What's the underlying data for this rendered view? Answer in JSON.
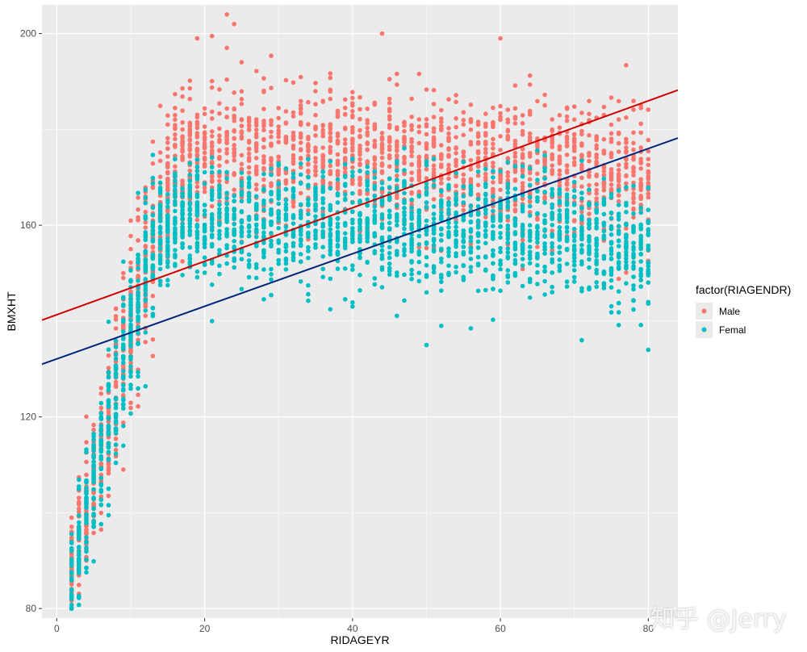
{
  "chart_data": {
    "type": "scatter",
    "title": "",
    "xlabel": "RIDAGEYR",
    "ylabel": "BMXHT",
    "xlim": [
      -2,
      84
    ],
    "ylim": [
      78,
      206
    ],
    "x_ticks": [
      0,
      20,
      40,
      60,
      80
    ],
    "y_ticks": [
      80,
      120,
      160,
      200
    ],
    "x_tick_labels": [
      "0",
      "20",
      "40",
      "60",
      "80"
    ],
    "y_tick_labels": [
      "80",
      "120",
      "160",
      "200"
    ],
    "grid": true,
    "background": "#ebebeb",
    "legend": {
      "title": "factor(RIAGENDR)",
      "placement": "right",
      "entries": [
        "Male",
        "Femal"
      ]
    },
    "series": [
      {
        "name": "Male",
        "color": "#f8766d",
        "age_min": 2,
        "age_max": 80,
        "profile": [
          [
            2,
            89,
            6
          ],
          [
            4,
            101,
            7
          ],
          [
            6,
            113,
            7
          ],
          [
            8,
            126,
            8
          ],
          [
            10,
            139,
            8
          ],
          [
            12,
            152,
            9
          ],
          [
            14,
            163,
            8
          ],
          [
            16,
            172,
            7
          ],
          [
            18,
            175,
            7
          ],
          [
            25,
            175,
            7
          ],
          [
            40,
            174,
            7
          ],
          [
            55,
            173,
            7
          ],
          [
            70,
            171,
            7
          ],
          [
            80,
            170,
            7
          ]
        ],
        "outliers": [
          [
            23,
            204
          ],
          [
            24,
            202
          ],
          [
            19,
            199
          ],
          [
            21,
            199.5
          ],
          [
            44,
            200
          ],
          [
            60,
            199
          ],
          [
            23,
            197
          ]
        ]
      },
      {
        "name": "Femal",
        "color": "#00bfc4",
        "age_min": 2,
        "age_max": 80,
        "profile": [
          [
            2,
            88,
            6
          ],
          [
            4,
            100,
            7
          ],
          [
            6,
            112,
            7
          ],
          [
            8,
            125,
            8
          ],
          [
            10,
            138,
            8
          ],
          [
            12,
            150,
            7
          ],
          [
            14,
            158,
            6
          ],
          [
            16,
            161,
            6
          ],
          [
            25,
            161,
            6
          ],
          [
            40,
            160,
            6
          ],
          [
            55,
            159,
            6
          ],
          [
            70,
            158,
            6
          ],
          [
            80,
            156,
            6
          ]
        ],
        "outliers": [
          [
            50,
            135
          ],
          [
            80,
            134
          ],
          [
            71,
            136
          ],
          [
            21,
            140
          ],
          [
            52,
            139
          ]
        ]
      }
    ],
    "lines": [
      {
        "name": "Male fit",
        "color": "#cc0000",
        "x": [
          -2,
          84
        ],
        "y": [
          140.2,
          188.2
        ]
      },
      {
        "name": "Femal fit",
        "color": "#00257a",
        "x": [
          -2,
          84
        ],
        "y": [
          131,
          178.2
        ]
      }
    ]
  },
  "watermark": "知乎 @Jerry"
}
